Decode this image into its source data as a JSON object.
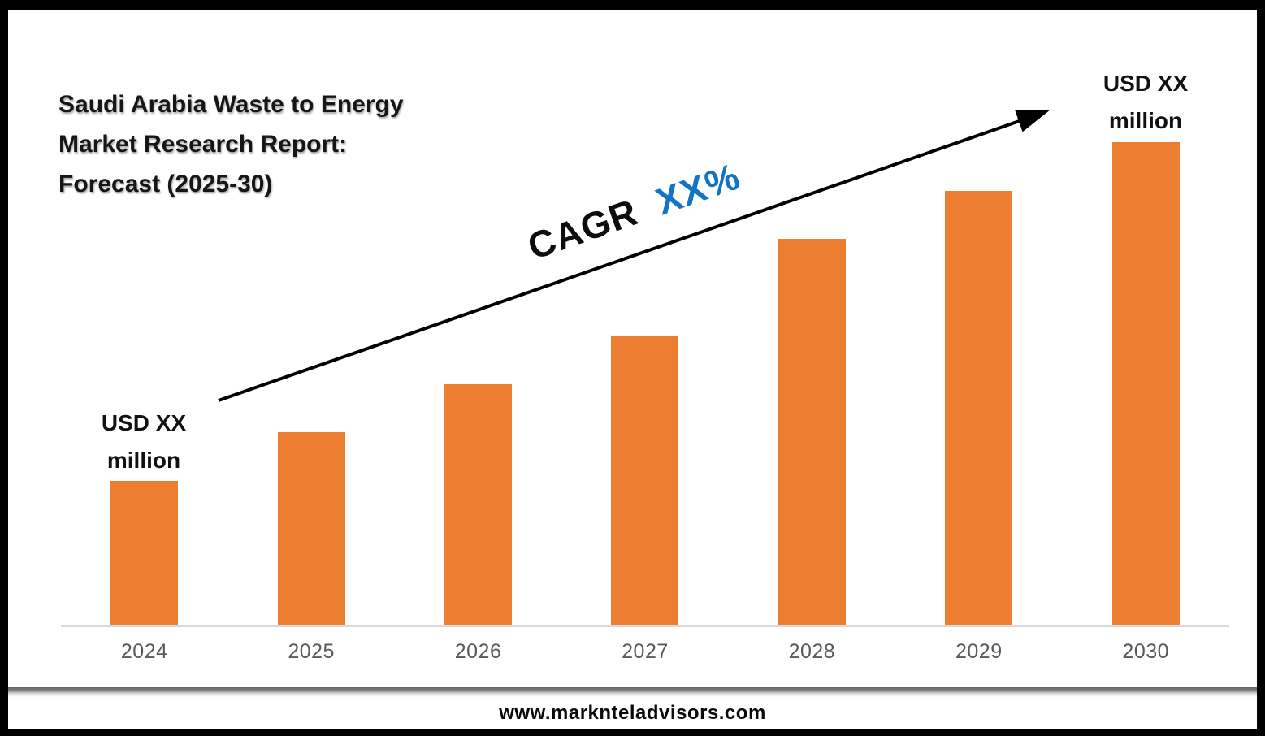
{
  "title": {
    "full": "Saudi Arabia Waste to Energy Market Research Report: Forecast (2025-30)",
    "line1": "Saudi Arabia Waste to Energy",
    "line2": "Market Research Report:",
    "line3": "Forecast (2025-30)"
  },
  "annotations": {
    "cagr_prefix": "CAGR",
    "cagr_value": "XX%",
    "first_bar_value": {
      "line1": "USD XX",
      "line2": "million"
    },
    "last_bar_value": {
      "line1": "USD XX",
      "line2": "million"
    }
  },
  "footer": {
    "website": "www.marknteladvisors.com"
  },
  "colors": {
    "bar_orange": "#ED7D31",
    "cagr_blue": "#1274c5",
    "axis_line": "#D9D9D9",
    "axis_label_gray": "#595959",
    "frame_black": "#000000"
  },
  "chart_data": {
    "type": "bar",
    "title": "Saudi Arabia Waste to Energy Market Research Report: Forecast (2025-30)",
    "categories": [
      "2024",
      "2025",
      "2026",
      "2027",
      "2028",
      "2029",
      "2030"
    ],
    "values_masked": "actual values hidden as XX in source image",
    "values_relative": [
      3,
      4,
      5,
      6,
      8,
      9,
      10
    ],
    "data_labels": {
      "2024": "USD XX million",
      "2030": "USD XX million"
    },
    "annotation": "CAGR XX% trend arrow from 2024 bar to 2030 bar",
    "xlabel": "",
    "ylabel": "",
    "ylim_relative": [
      0,
      10.6
    ],
    "grid": false,
    "legend": false,
    "bar_color": "#ED7D31"
  }
}
